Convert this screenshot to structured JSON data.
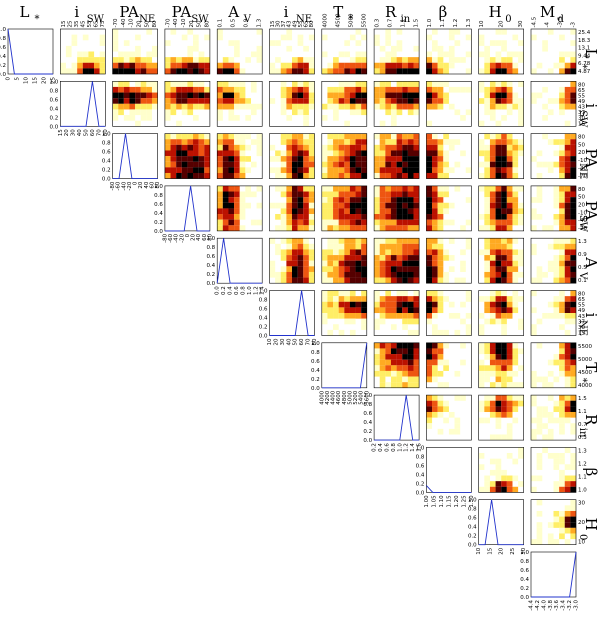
{
  "chart_data": {
    "type": "corner",
    "parameters": [
      {
        "key": "L",
        "main": "L",
        "sub": "*",
        "ticks_top": [],
        "ticks_right": [
          "25.4",
          "18.3",
          "13.1",
          "9.44",
          "6.78",
          "4.87"
        ],
        "ticks_bottom": [
          "0",
          "5",
          "10",
          "15",
          "20",
          "25"
        ]
      },
      {
        "key": "iSW",
        "main": "i",
        "sub": "SW",
        "ticks_top": [
          "15",
          "25",
          "35",
          "45",
          "55",
          "65",
          "75"
        ],
        "ticks_right": [
          "80",
          "65",
          "55",
          "49",
          "43",
          "37",
          "30",
          "15"
        ],
        "ticks_bottom": [
          "15",
          "20",
          "30",
          "40",
          "50",
          "60",
          "70",
          "80"
        ]
      },
      {
        "key": "PANE",
        "main": "PA",
        "sub": "NE",
        "ticks_top": [
          "-70",
          "-40",
          "-10",
          "20",
          "50",
          "80"
        ],
        "ticks_right": [
          "80",
          "50",
          "20",
          "-10",
          "-40",
          "-70"
        ],
        "ticks_bottom": [
          "-80",
          "-60",
          "-40",
          "-20",
          "0",
          "20",
          "40",
          "60",
          "80"
        ]
      },
      {
        "key": "PASW",
        "main": "PA",
        "sub": "SW",
        "ticks_top": [
          "-70",
          "-40",
          "-10",
          "20",
          "50",
          "80"
        ],
        "ticks_right": [
          "80",
          "50",
          "20",
          "-10",
          "-40",
          "-70"
        ],
        "ticks_bottom": [
          "-80",
          "-60",
          "-40",
          "-20",
          "0",
          "20",
          "40",
          "60",
          "80"
        ]
      },
      {
        "key": "AV",
        "main": "A",
        "sub": "V",
        "ticks_top": [
          "0.1",
          "0.5",
          "0.9",
          "1.3"
        ],
        "ticks_right": [
          "1.3",
          "0.9",
          "0.5",
          "0.1"
        ],
        "ticks_bottom": [
          "0.0",
          "0.2",
          "0.4",
          "0.6",
          "0.8",
          "1.0",
          "1.2",
          "1.4"
        ]
      },
      {
        "key": "iNE",
        "main": "i",
        "sub": "NE",
        "ticks_top": [
          "15",
          "30",
          "37",
          "43",
          "49",
          "55",
          "65",
          "80"
        ],
        "ticks_right": [
          "80",
          "65",
          "55",
          "49",
          "43",
          "37",
          "30",
          "15"
        ],
        "ticks_bottom": [
          "10",
          "20",
          "30",
          "40",
          "50",
          "60",
          "70",
          "80"
        ]
      },
      {
        "key": "T",
        "main": "T",
        "sub": "*",
        "ticks_top": [
          "4000",
          "4500",
          "5000",
          "5500"
        ],
        "ticks_right": [
          "5500",
          "5000",
          "4500",
          "4000"
        ],
        "ticks_bottom": [
          "4000",
          "4200",
          "4400",
          "4600",
          "4800",
          "5000",
          "5200",
          "5400",
          "5600"
        ]
      },
      {
        "key": "Rin",
        "main": "R",
        "sub": "in",
        "ticks_top": [
          "0.3",
          "0.7",
          "1.1",
          "1.5"
        ],
        "ticks_right": [
          "1.5",
          "1.1",
          "0.7",
          "0.3"
        ],
        "ticks_bottom": [
          "0.2",
          "0.4",
          "0.6",
          "0.8",
          "1.0",
          "1.2",
          "1.4",
          "1.6"
        ]
      },
      {
        "key": "beta",
        "main": "β",
        "sub": "",
        "ticks_top": [
          "1.0",
          "1.1",
          "1.2",
          "1.3"
        ],
        "ticks_right": [
          "1.3",
          "1.2",
          "1.1",
          "1.0"
        ],
        "ticks_bottom": [
          "1.00",
          "1.05",
          "1.10",
          "1.15",
          "1.20",
          "1.25",
          "1.30"
        ]
      },
      {
        "key": "H0",
        "main": "H",
        "sub": "0",
        "ticks_top": [
          "10",
          "20",
          "30"
        ],
        "ticks_right": [
          "30",
          "20",
          "10"
        ],
        "ticks_bottom": [
          "10",
          "15",
          "20",
          "25",
          "30"
        ]
      },
      {
        "key": "Md",
        "main": "M",
        "sub": "d",
        "ticks_top": [
          "-4.5",
          "-4",
          "-3.5",
          "-3"
        ],
        "ticks_right": [],
        "ticks_bottom": [
          "-4.4",
          "-4.2",
          "-4.0",
          "-3.8",
          "-3.6",
          "-3.4",
          "-3.2",
          "-3.0"
        ]
      }
    ],
    "diag_yticks": [
      "0.0",
      "0.2",
      "0.4",
      "0.6",
      "0.8",
      "1.0"
    ],
    "histograms": [
      [
        1.0,
        0.0,
        0.0,
        0.0,
        0.0,
        0.0,
        0.0,
        0.0
      ],
      [
        0.0,
        0.0,
        0.0,
        0.0,
        0.0,
        1.0,
        0.0,
        0.0
      ],
      [
        0.0,
        0.0,
        1.0,
        0.0,
        0.0,
        0.0,
        0.0,
        0.0
      ],
      [
        0.0,
        0.0,
        0.0,
        0.0,
        1.0,
        0.0,
        0.0,
        0.0
      ],
      [
        0.0,
        1.0,
        0.0,
        0.0,
        0.0,
        0.0,
        0.0,
        0.0
      ],
      [
        0.0,
        0.0,
        0.0,
        0.0,
        0.0,
        1.0,
        0.0,
        0.0
      ],
      [
        0.0,
        0.0,
        0.0,
        0.0,
        0.0,
        0.0,
        0.0,
        1.0
      ],
      [
        0.0,
        0.0,
        0.0,
        0.0,
        0.0,
        1.0,
        0.0,
        0.0
      ],
      [
        0.15,
        0.0,
        0.0,
        0.0,
        0.0,
        0.0,
        0.0,
        0.0
      ],
      [
        0.0,
        0.0,
        1.0,
        0.0,
        0.0,
        0.0,
        0.0,
        0.0
      ],
      [
        0.0,
        0.0,
        0.0,
        0.0,
        0.0,
        0.0,
        0.0,
        1.0
      ]
    ],
    "colormap": [
      "#ffffff",
      "#ffffcc",
      "#ffee66",
      "#ffaa22",
      "#ee5511",
      "#bb1100",
      "#550000",
      "#000000"
    ]
  }
}
